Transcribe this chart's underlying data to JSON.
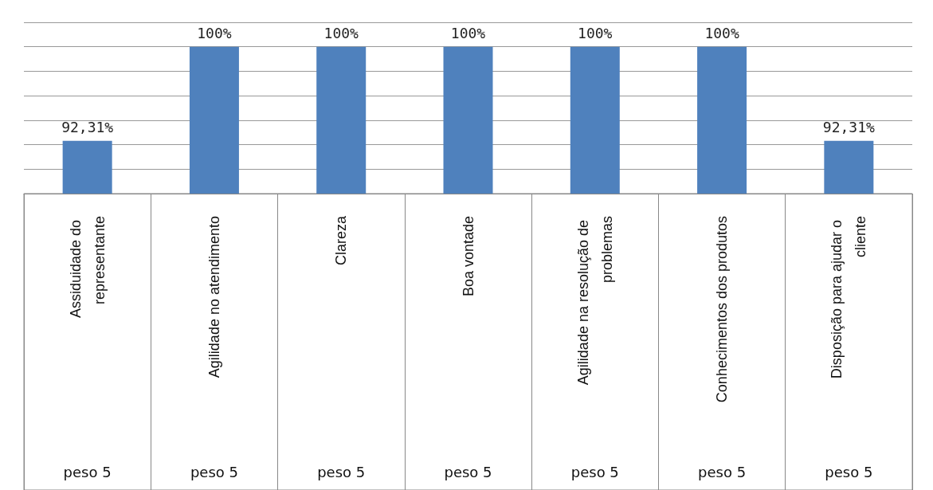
{
  "chart_data": {
    "type": "bar",
    "categories": [
      "Assiduidade do representante",
      "Agilidade no atendimento",
      "Clareza",
      "Boa vontade",
      "Agilidade na resolução de problemas",
      "Conhecimentos dos produtos",
      "Disposição para ajudar o cliente"
    ],
    "values": [
      92.31,
      100,
      100,
      100,
      100,
      100,
      92.31
    ],
    "value_labels": [
      "92,31%",
      "100%",
      "100%",
      "100%",
      "100%",
      "100%",
      "92,31%"
    ],
    "color": "#4f81bd",
    "ylim": [
      88,
      102
    ],
    "yticks": [
      {
        "value": 88,
        "label": null
      },
      {
        "value": 90,
        "label": null
      },
      {
        "value": 92,
        "label": null
      },
      {
        "value": 94,
        "label": null
      },
      {
        "value": 96,
        "label": null
      },
      {
        "value": 98,
        "label": null
      },
      {
        "value": 100,
        "label": null
      },
      {
        "value": 102,
        "label": null
      }
    ],
    "tick_labels": "x",
    "grid": "y",
    "annotations": [
      "peso 5",
      "peso 5",
      "peso 5",
      "peso 5",
      "peso 5",
      "peso 5",
      "peso 5"
    ]
  }
}
